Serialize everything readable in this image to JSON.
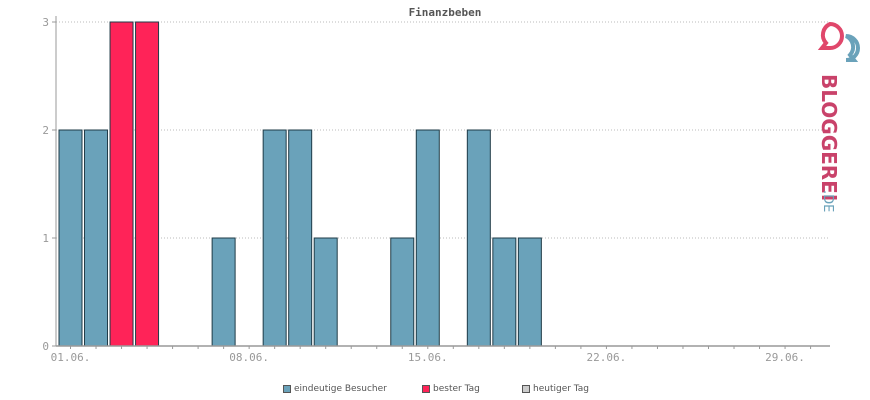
{
  "chart_data": {
    "type": "bar",
    "title": "Finanzbeben",
    "xlabel": "",
    "ylabel": "",
    "ylim": [
      0,
      3
    ],
    "yticks": [
      "0",
      "1",
      "2",
      "3"
    ],
    "grid": true,
    "days": [
      1,
      2,
      3,
      4,
      5,
      6,
      7,
      8,
      9,
      10,
      11,
      12,
      13,
      14,
      15,
      16,
      17,
      18,
      19,
      20,
      21,
      22,
      23,
      24,
      25,
      26,
      27,
      28,
      29,
      30
    ],
    "values": [
      2,
      2,
      3,
      3,
      0,
      0,
      1,
      0,
      2,
      2,
      1,
      0,
      0,
      1,
      2,
      0,
      2,
      1,
      1,
      0,
      0,
      0,
      0,
      0,
      0,
      0,
      0,
      0,
      0,
      0
    ],
    "best_days": [
      3,
      4
    ],
    "xtick_labels": [
      {
        "day": 1,
        "label": "01.06."
      },
      {
        "day": 8,
        "label": "08.06."
      },
      {
        "day": 15,
        "label": "15.06."
      },
      {
        "day": 22,
        "label": "22.06."
      },
      {
        "day": 29,
        "label": "29.06."
      }
    ],
    "legend_placement": "bottom-center"
  },
  "legend": [
    {
      "label": "eindeutige Besucher",
      "color": "#6aa2ba"
    },
    {
      "label": "bester Tag",
      "color": "#ff2358"
    },
    {
      "label": "heutiger Tag",
      "color": "#cccccc"
    }
  ],
  "colors": {
    "bar": "#6aa2ba",
    "best": "#ff2358",
    "bar_stroke": "#1f3b47",
    "grid": "#bbbbbb",
    "axis": "#999999"
  },
  "logo": {
    "text_main": "BLOGGEREI",
    "text_suffix": ".DE"
  }
}
